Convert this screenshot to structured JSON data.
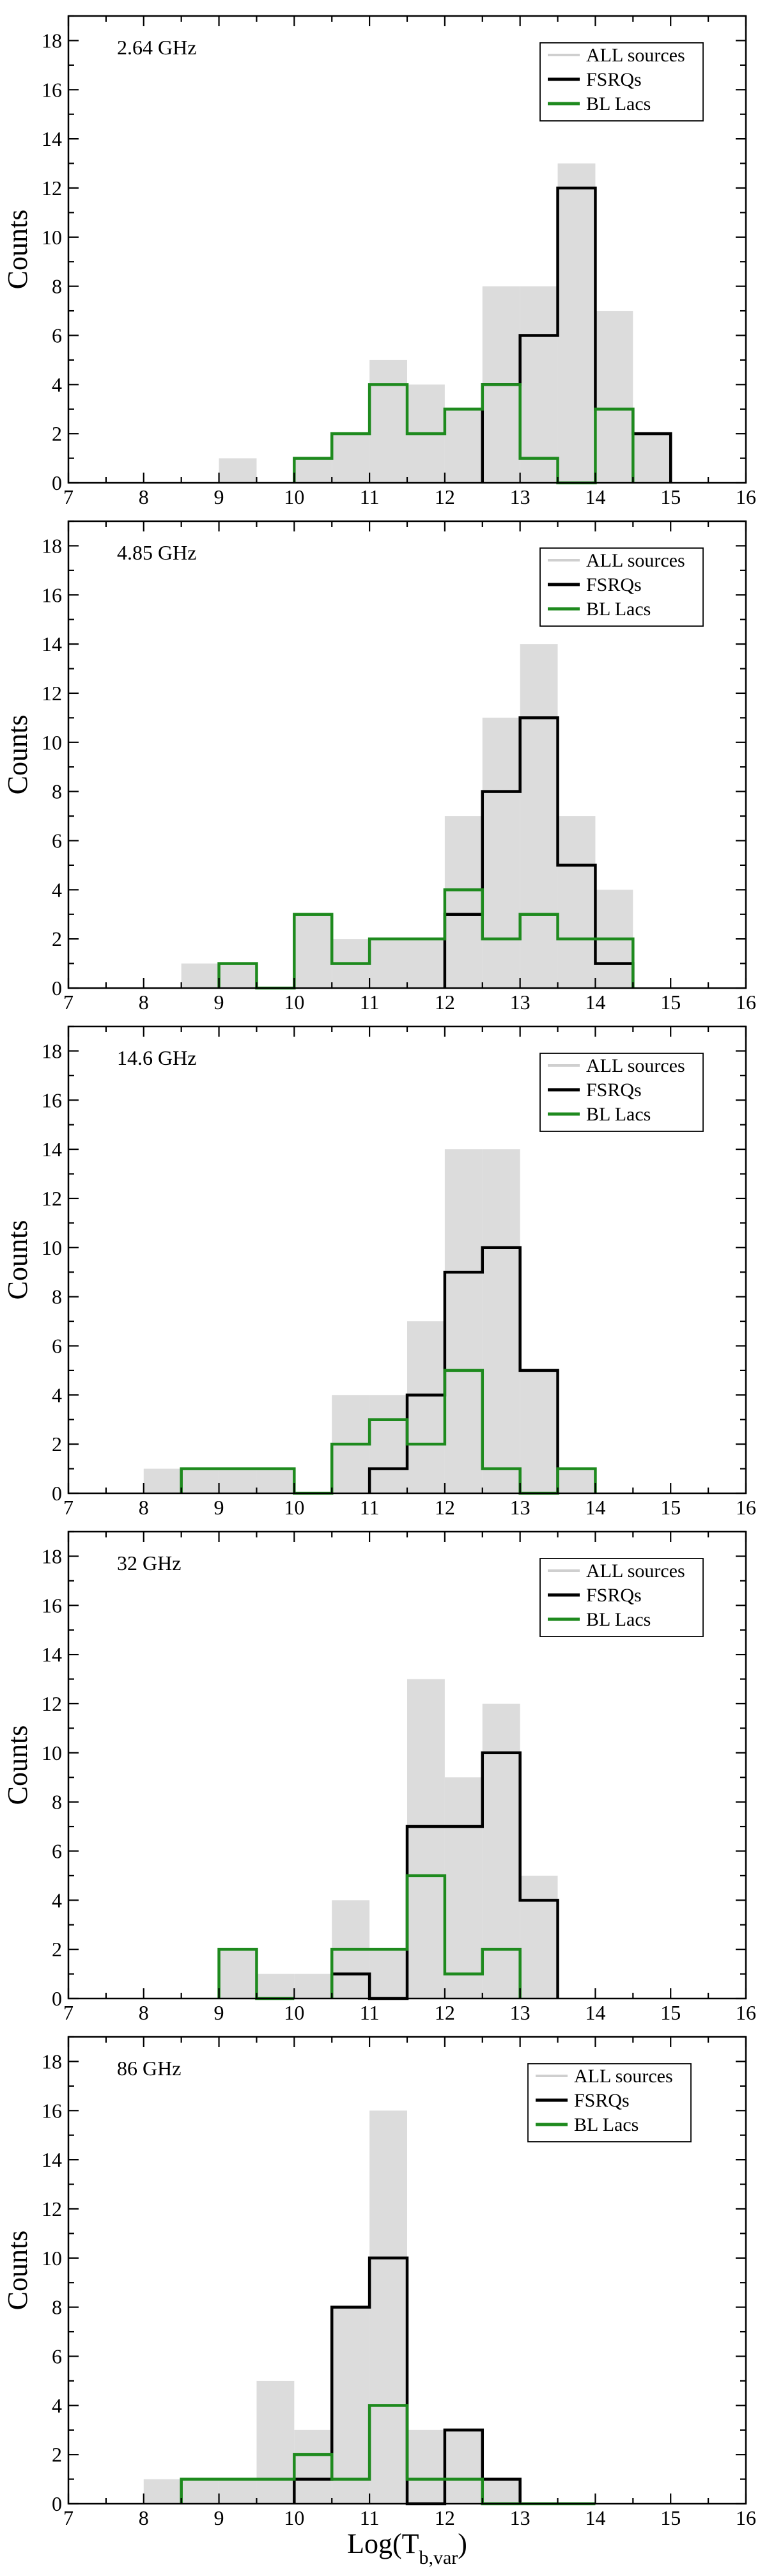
{
  "chart_data": [
    {
      "type": "bar",
      "annotation": "2.64 GHz",
      "xlim": [
        7,
        16
      ],
      "ylim": [
        0,
        19
      ],
      "xticks": [
        7,
        8,
        9,
        10,
        11,
        12,
        13,
        14,
        15,
        16
      ],
      "yticks": [
        0,
        2,
        4,
        6,
        8,
        10,
        12,
        14,
        16,
        18
      ],
      "ylabel": "Counts",
      "xlabel": "",
      "bin_width": 0.5,
      "legend_position": "top-right",
      "series": [
        {
          "name": "ALL sources",
          "style": "filled",
          "color": "#dcdcdc",
          "bins": [
            [
              9.0,
              1
            ],
            [
              9.5,
              0
            ],
            [
              10.0,
              1
            ],
            [
              10.5,
              2
            ],
            [
              11.0,
              5
            ],
            [
              11.5,
              4
            ],
            [
              12.0,
              3
            ],
            [
              12.5,
              8
            ],
            [
              13.0,
              8
            ],
            [
              13.5,
              13
            ],
            [
              14.0,
              7
            ],
            [
              14.5,
              2
            ]
          ]
        },
        {
          "name": "FSRQs",
          "style": "step",
          "color": "#000000",
          "bins": [
            [
              12.5,
              4
            ],
            [
              13.0,
              6
            ],
            [
              13.5,
              12
            ],
            [
              14.0,
              3
            ],
            [
              14.5,
              2
            ]
          ]
        },
        {
          "name": "BL Lacs",
          "style": "step",
          "color": "#1e8a1e",
          "bins": [
            [
              10.0,
              1
            ],
            [
              10.5,
              2
            ],
            [
              11.0,
              4
            ],
            [
              11.5,
              2
            ],
            [
              12.0,
              3
            ],
            [
              12.5,
              4
            ],
            [
              13.0,
              1
            ],
            [
              13.5,
              0
            ],
            [
              14.0,
              3
            ]
          ]
        }
      ]
    },
    {
      "type": "bar",
      "annotation": "4.85 GHz",
      "xlim": [
        7,
        16
      ],
      "ylim": [
        0,
        19
      ],
      "xticks": [
        7,
        8,
        9,
        10,
        11,
        12,
        13,
        14,
        15,
        16
      ],
      "yticks": [
        0,
        2,
        4,
        6,
        8,
        10,
        12,
        14,
        16,
        18
      ],
      "ylabel": "Counts",
      "xlabel": "",
      "bin_width": 0.5,
      "legend_position": "top-right",
      "series": [
        {
          "name": "ALL sources",
          "style": "filled",
          "color": "#dcdcdc",
          "bins": [
            [
              8.5,
              1
            ],
            [
              9.0,
              1
            ],
            [
              10.0,
              3
            ],
            [
              10.5,
              2
            ],
            [
              11.0,
              2
            ],
            [
              11.5,
              2
            ],
            [
              12.0,
              7
            ],
            [
              12.5,
              11
            ],
            [
              13.0,
              14
            ],
            [
              13.5,
              7
            ],
            [
              14.0,
              4
            ]
          ]
        },
        {
          "name": "FSRQs",
          "style": "step",
          "color": "#000000",
          "bins": [
            [
              12.0,
              3
            ],
            [
              12.5,
              8
            ],
            [
              13.0,
              11
            ],
            [
              13.5,
              5
            ],
            [
              14.0,
              1
            ]
          ]
        },
        {
          "name": "BL Lacs",
          "style": "step",
          "color": "#1e8a1e",
          "bins": [
            [
              9.0,
              1
            ],
            [
              9.5,
              0
            ],
            [
              10.0,
              3
            ],
            [
              10.5,
              1
            ],
            [
              11.0,
              2
            ],
            [
              11.5,
              2
            ],
            [
              12.0,
              4
            ],
            [
              12.5,
              2
            ],
            [
              13.0,
              3
            ],
            [
              13.5,
              2
            ],
            [
              14.0,
              2
            ]
          ]
        }
      ]
    },
    {
      "type": "bar",
      "annotation": "14.6 GHz",
      "xlim": [
        7,
        16
      ],
      "ylim": [
        0,
        19
      ],
      "xticks": [
        7,
        8,
        9,
        10,
        11,
        12,
        13,
        14,
        15,
        16
      ],
      "yticks": [
        0,
        2,
        4,
        6,
        8,
        10,
        12,
        14,
        16,
        18
      ],
      "ylabel": "Counts",
      "xlabel": "",
      "bin_width": 0.5,
      "legend_position": "top-right",
      "series": [
        {
          "name": "ALL sources",
          "style": "filled",
          "color": "#dcdcdc",
          "bins": [
            [
              8.0,
              1
            ],
            [
              8.5,
              1
            ],
            [
              9.0,
              1
            ],
            [
              9.5,
              1
            ],
            [
              10.5,
              4
            ],
            [
              11.0,
              4
            ],
            [
              11.5,
              7
            ],
            [
              12.0,
              14
            ],
            [
              12.5,
              14
            ],
            [
              13.0,
              5
            ],
            [
              13.5,
              1
            ]
          ]
        },
        {
          "name": "FSRQs",
          "style": "step",
          "color": "#000000",
          "bins": [
            [
              11.0,
              1
            ],
            [
              11.5,
              4
            ],
            [
              12.0,
              9
            ],
            [
              12.5,
              10
            ],
            [
              13.0,
              5
            ]
          ]
        },
        {
          "name": "BL Lacs",
          "style": "step",
          "color": "#1e8a1e",
          "bins": [
            [
              8.5,
              1
            ],
            [
              9.0,
              1
            ],
            [
              9.5,
              1
            ],
            [
              10.0,
              0
            ],
            [
              10.5,
              2
            ],
            [
              11.0,
              3
            ],
            [
              11.5,
              2
            ],
            [
              12.0,
              5
            ],
            [
              12.5,
              1
            ],
            [
              13.0,
              0
            ],
            [
              13.5,
              1
            ]
          ]
        }
      ]
    },
    {
      "type": "bar",
      "annotation": "32 GHz",
      "xlim": [
        7,
        16
      ],
      "ylim": [
        0,
        19
      ],
      "xticks": [
        7,
        8,
        9,
        10,
        11,
        12,
        13,
        14,
        15,
        16
      ],
      "yticks": [
        0,
        2,
        4,
        6,
        8,
        10,
        12,
        14,
        16,
        18
      ],
      "ylabel": "Counts",
      "xlabel": "",
      "bin_width": 0.5,
      "legend_position": "top-right",
      "series": [
        {
          "name": "ALL sources",
          "style": "filled",
          "color": "#dcdcdc",
          "bins": [
            [
              9.0,
              2
            ],
            [
              9.5,
              1
            ],
            [
              10.0,
              1
            ],
            [
              10.5,
              4
            ],
            [
              11.0,
              2
            ],
            [
              11.5,
              13
            ],
            [
              12.0,
              9
            ],
            [
              12.5,
              12
            ],
            [
              13.0,
              5
            ]
          ]
        },
        {
          "name": "FSRQs",
          "style": "step",
          "color": "#000000",
          "bins": [
            [
              10.5,
              1
            ],
            [
              11.0,
              0
            ],
            [
              11.5,
              7
            ],
            [
              12.0,
              7
            ],
            [
              12.5,
              10
            ],
            [
              13.0,
              4
            ]
          ]
        },
        {
          "name": "BL Lacs",
          "style": "step",
          "color": "#1e8a1e",
          "bins": [
            [
              9.0,
              2
            ],
            [
              9.5,
              0
            ],
            [
              10.5,
              2
            ],
            [
              11.0,
              2
            ],
            [
              11.5,
              5
            ],
            [
              12.0,
              1
            ],
            [
              12.5,
              2
            ]
          ]
        }
      ]
    },
    {
      "type": "bar",
      "annotation": "86 GHz",
      "xlim": [
        7,
        16
      ],
      "ylim": [
        0,
        19
      ],
      "xticks": [
        7,
        8,
        9,
        10,
        11,
        12,
        13,
        14,
        15,
        16
      ],
      "yticks": [
        0,
        2,
        4,
        6,
        8,
        10,
        12,
        14,
        16,
        18
      ],
      "ylabel": "Counts",
      "xlabel": "Log(T",
      "xlabel_subscript": "b,var",
      "xlabel_suffix": ")",
      "bin_width": 0.5,
      "legend_position": "top-right",
      "series": [
        {
          "name": "ALL sources",
          "style": "filled",
          "color": "#dcdcdc",
          "bins": [
            [
              8.0,
              1
            ],
            [
              8.5,
              1
            ],
            [
              9.0,
              1
            ],
            [
              9.5,
              5
            ],
            [
              10.0,
              3
            ],
            [
              10.5,
              8
            ],
            [
              11.0,
              16
            ],
            [
              11.5,
              3
            ],
            [
              12.0,
              3
            ],
            [
              12.5,
              1
            ]
          ]
        },
        {
          "name": "FSRQs",
          "style": "step",
          "color": "#000000",
          "bins": [
            [
              10.0,
              1
            ],
            [
              10.5,
              8
            ],
            [
              11.0,
              10
            ],
            [
              11.5,
              0
            ],
            [
              12.0,
              3
            ],
            [
              12.5,
              1
            ]
          ]
        },
        {
          "name": "BL Lacs",
          "style": "step",
          "color": "#1e8a1e",
          "bins": [
            [
              8.5,
              1
            ],
            [
              9.0,
              1
            ],
            [
              9.5,
              1
            ],
            [
              10.0,
              2
            ],
            [
              10.5,
              1
            ],
            [
              11.0,
              4
            ],
            [
              11.5,
              1
            ],
            [
              12.0,
              1
            ],
            [
              12.5,
              0
            ],
            [
              13.0,
              0
            ],
            [
              13.5,
              0
            ]
          ]
        }
      ]
    }
  ]
}
